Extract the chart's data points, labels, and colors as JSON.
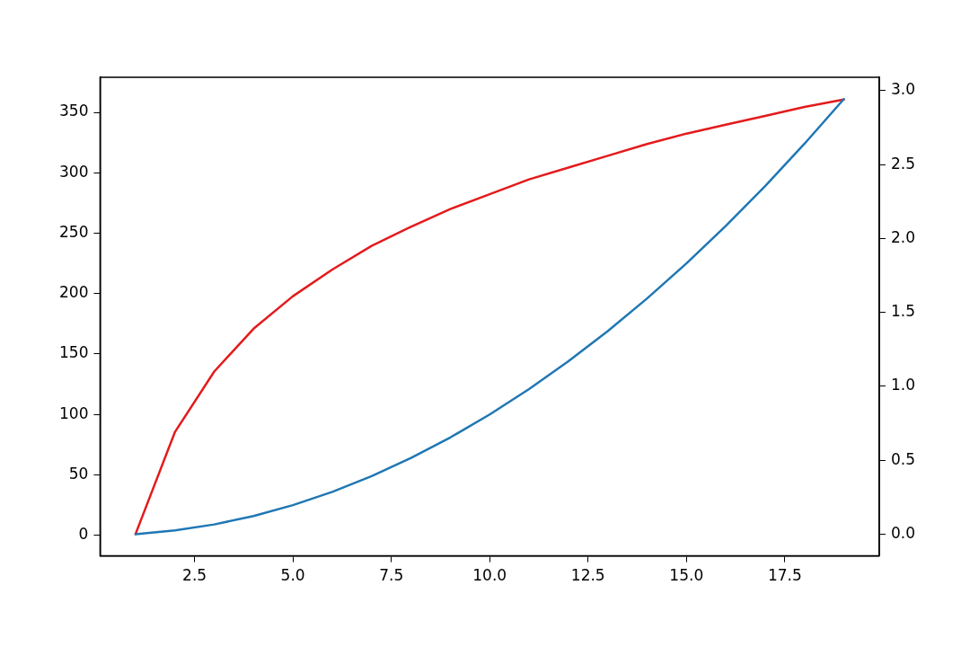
{
  "chart_data": {
    "type": "line",
    "x": [
      1,
      2,
      3,
      4,
      5,
      6,
      7,
      8,
      9,
      10,
      11,
      12,
      13,
      14,
      15,
      16,
      17,
      18,
      19
    ],
    "series": [
      {
        "color": "#1f77b4",
        "values": [
          1,
          4,
          9,
          16,
          25,
          36,
          49,
          64,
          81,
          100,
          121,
          144,
          169,
          196,
          225,
          256,
          289,
          324,
          361
        ]
      },
      {
        "color": "#e41a1c",
        "axis": "y2",
        "values": [
          0,
          0.69,
          1.1,
          1.39,
          1.61,
          1.79,
          1.95,
          2.08,
          2.2,
          2.3,
          2.4,
          2.48,
          2.56,
          2.64,
          2.71,
          2.77,
          2.83,
          2.89,
          2.94
        ]
      }
    ],
    "xlim": [
      0.1,
      19.9
    ],
    "xticks": [
      {
        "value": 2.5,
        "label": "2.5"
      },
      {
        "value": 5,
        "label": "5.0"
      },
      {
        "value": 7.5,
        "label": "7.5"
      },
      {
        "value": 10,
        "label": "10.0"
      },
      {
        "value": 12.5,
        "label": "12.5"
      },
      {
        "value": 15,
        "label": "15.0"
      },
      {
        "value": 17.5,
        "label": "17.5"
      }
    ],
    "ylim": [
      -17,
      379
    ],
    "yticks": [
      0,
      50,
      100,
      150,
      200,
      250,
      300,
      350
    ],
    "y2lim": [
      -0.147,
      3.091
    ],
    "y2ticks": [
      {
        "value": 0,
        "label": "0.0"
      },
      {
        "value": 0.5,
        "label": "0.5"
      },
      {
        "value": 1,
        "label": "1.0"
      },
      {
        "value": 1.5,
        "label": "1.5"
      },
      {
        "value": 2,
        "label": "2.0"
      },
      {
        "value": 2.5,
        "label": "2.5"
      },
      {
        "value": 3,
        "label": "3.0"
      }
    ],
    "grid": false,
    "legend": false,
    "marker": "none",
    "line_style": "solid"
  }
}
